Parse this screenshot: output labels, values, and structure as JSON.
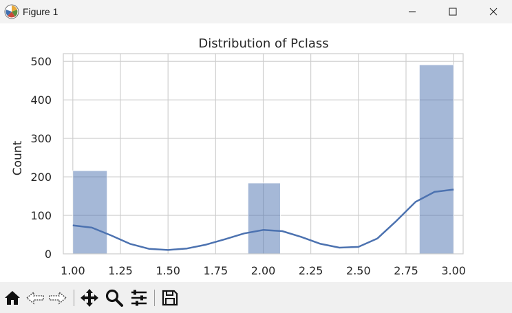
{
  "window": {
    "title": "Figure 1",
    "controls": [
      "minimize",
      "maximize",
      "close"
    ]
  },
  "toolbar": {
    "buttons": [
      "home-icon",
      "back-icon",
      "forward-icon",
      "pan-icon",
      "zoom-icon",
      "configure-subplots-icon",
      "save-icon"
    ]
  },
  "chart_data": {
    "type": "bar",
    "title": "Distribution of Pclass",
    "xlabel": "",
    "ylabel": "Count",
    "xlim": [
      0.95,
      3.05
    ],
    "ylim": [
      0,
      520
    ],
    "x_ticks": [
      1.0,
      1.25,
      1.5,
      1.75,
      2.0,
      2.25,
      2.5,
      2.75,
      3.0
    ],
    "x_tick_labels": [
      "1.00",
      "1.25",
      "1.50",
      "1.75",
      "2.00",
      "2.25",
      "2.50",
      "2.75",
      "3.00"
    ],
    "y_ticks": [
      0,
      100,
      200,
      300,
      400,
      500
    ],
    "y_tick_labels": [
      "0",
      "100",
      "200",
      "300",
      "400",
      "500"
    ],
    "grid": true,
    "bar_color": "#4c72b0",
    "bars": [
      {
        "x0": 1.0,
        "x1": 1.18,
        "value": 216
      },
      {
        "x0": 1.92,
        "x1": 2.09,
        "value": 184
      },
      {
        "x0": 2.82,
        "x1": 3.0,
        "value": 491
      }
    ],
    "kde_color": "#4c72b0",
    "kde": {
      "x": [
        1.0,
        1.1,
        1.2,
        1.3,
        1.4,
        1.5,
        1.6,
        1.7,
        1.8,
        1.9,
        2.0,
        2.1,
        2.2,
        2.3,
        2.4,
        2.5,
        2.6,
        2.7,
        2.8,
        2.9,
        3.0
      ],
      "y": [
        74,
        68,
        48,
        26,
        13,
        10,
        14,
        24,
        38,
        53,
        62,
        59,
        44,
        26,
        16,
        18,
        40,
        86,
        135,
        161,
        167
      ]
    }
  }
}
